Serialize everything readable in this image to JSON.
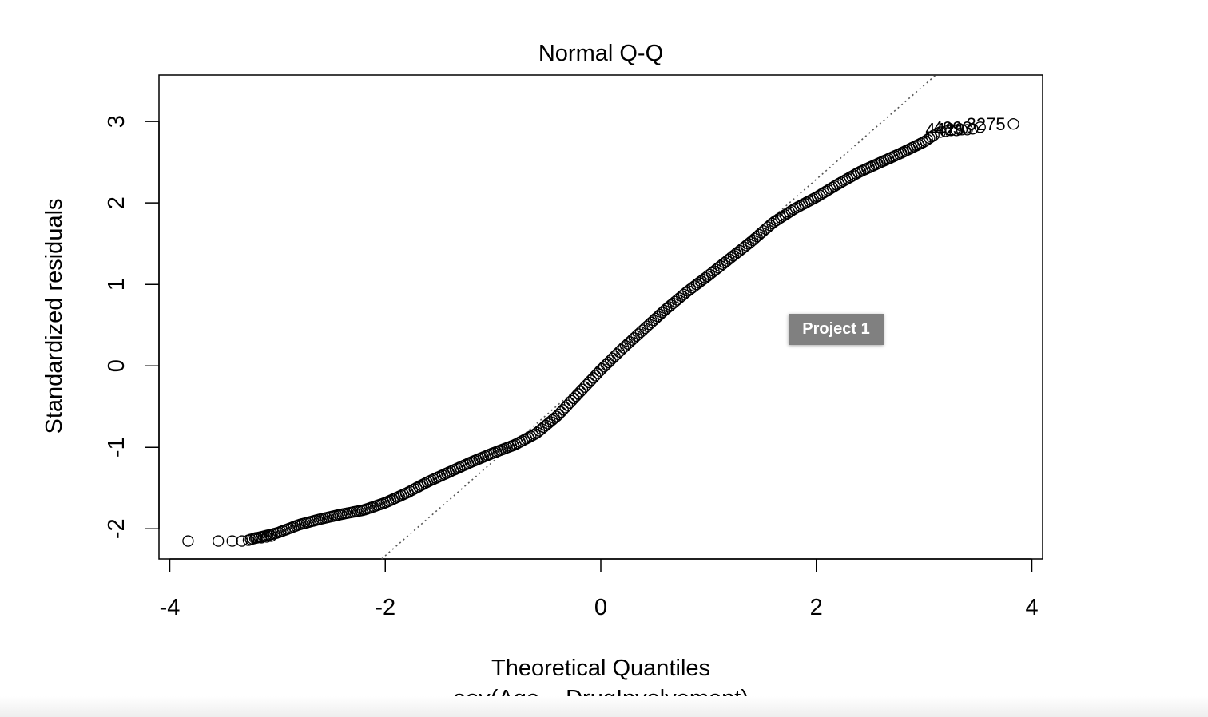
{
  "chart_data": {
    "type": "scatter",
    "title": "Normal Q-Q",
    "xlabel": "Theoretical Quantiles",
    "subtitle": "aov(Age ~ DrugInvolvement)",
    "ylabel": "Standardized residuals",
    "xlim": [
      -4.1,
      4.1
    ],
    "ylim": [
      -2.37,
      3.57
    ],
    "x_ticks": [
      -4,
      -2,
      0,
      2,
      4
    ],
    "x_tick_labels": [
      "-4",
      "-2",
      "0",
      "2",
      "4"
    ],
    "y_ticks": [
      -2,
      -1,
      0,
      1,
      2,
      3
    ],
    "y_tick_labels": [
      "-2",
      "-1",
      "0",
      "1",
      "2",
      "3"
    ],
    "reference_line": {
      "slope": 1.155,
      "intercept": -0.02,
      "style": "dotted"
    },
    "curve_knots": [
      [
        -3.25,
        -2.13
      ],
      [
        -3.0,
        -2.05
      ],
      [
        -2.8,
        -1.95
      ],
      [
        -2.6,
        -1.88
      ],
      [
        -2.4,
        -1.82
      ],
      [
        -2.2,
        -1.77
      ],
      [
        -2.0,
        -1.68
      ],
      [
        -1.8,
        -1.56
      ],
      [
        -1.6,
        -1.42
      ],
      [
        -1.4,
        -1.3
      ],
      [
        -1.2,
        -1.18
      ],
      [
        -1.0,
        -1.07
      ],
      [
        -0.8,
        -0.97
      ],
      [
        -0.6,
        -0.83
      ],
      [
        -0.4,
        -0.61
      ],
      [
        -0.2,
        -0.33
      ],
      [
        0.0,
        -0.05
      ],
      [
        0.2,
        0.21
      ],
      [
        0.4,
        0.45
      ],
      [
        0.6,
        0.69
      ],
      [
        0.8,
        0.91
      ],
      [
        1.0,
        1.11
      ],
      [
        1.2,
        1.32
      ],
      [
        1.4,
        1.53
      ],
      [
        1.6,
        1.76
      ],
      [
        1.8,
        1.93
      ],
      [
        2.0,
        2.07
      ],
      [
        2.2,
        2.23
      ],
      [
        2.4,
        2.38
      ],
      [
        2.6,
        2.5
      ],
      [
        2.8,
        2.62
      ],
      [
        3.0,
        2.75
      ],
      [
        3.1,
        2.84
      ]
    ],
    "tail_points": [
      [
        -3.83,
        -2.15
      ],
      [
        -3.55,
        -2.15
      ],
      [
        -3.42,
        -2.15
      ],
      [
        -3.33,
        -2.15
      ],
      [
        -3.27,
        -2.14
      ],
      [
        -3.2,
        -2.11
      ],
      [
        -3.15,
        -2.11
      ],
      [
        -3.1,
        -2.1
      ],
      [
        -3.06,
        -2.09
      ],
      [
        3.15,
        2.87
      ],
      [
        3.2,
        2.88
      ],
      [
        3.25,
        2.89
      ],
      [
        3.3,
        2.89
      ],
      [
        3.35,
        2.9
      ],
      [
        3.4,
        2.9
      ],
      [
        3.45,
        2.91
      ],
      [
        3.52,
        2.93
      ],
      [
        3.83,
        2.97
      ]
    ],
    "point_labels": [
      {
        "text": "3275",
        "x": 3.83,
        "y": 2.97
      },
      {
        "text": "4993",
        "x": 3.52,
        "y": 2.93
      },
      {
        "text": "4429",
        "x": 3.45,
        "y": 2.91
      }
    ]
  },
  "overlay": {
    "tooltip_label": "Project 1"
  }
}
